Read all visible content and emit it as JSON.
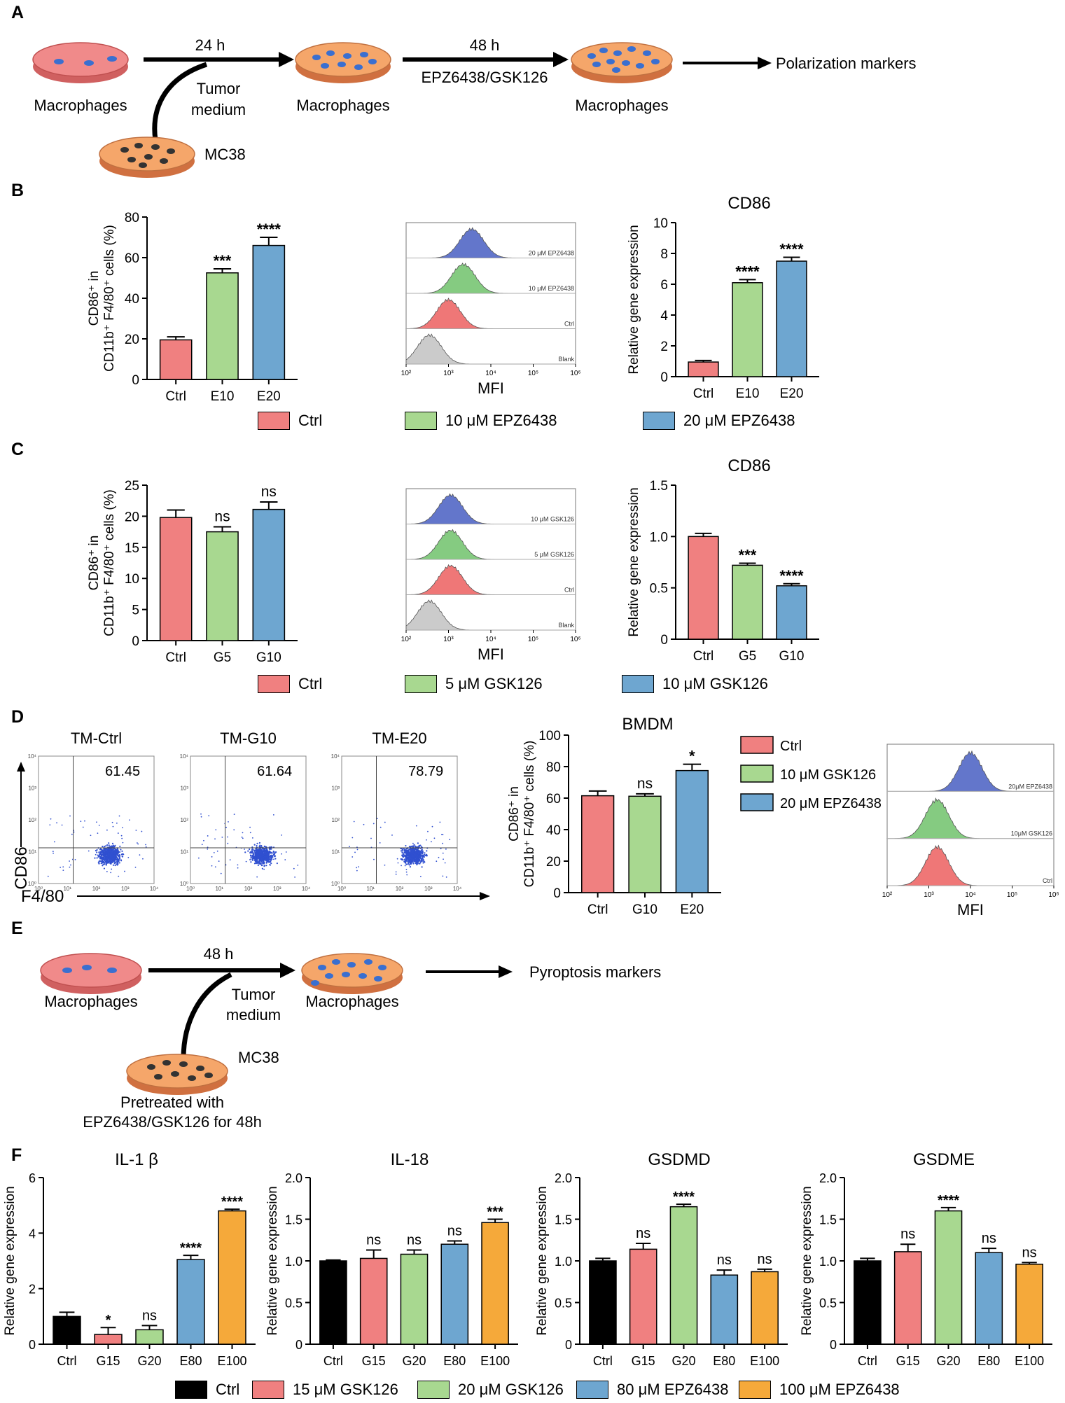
{
  "panels": [
    "A",
    "B",
    "C",
    "D",
    "E",
    "F"
  ],
  "colors": {
    "ctrl": "#f08080",
    "green": "#a8d890",
    "blue": "#6ea6d0",
    "orange": "#f5a93a",
    "black": "#000000",
    "dish_pink": "#f08a8a",
    "dish_orange": "#f5a66a",
    "cell_blue": "#3a6fd0",
    "cell_dark": "#333333",
    "hist_blue": "#5b6fc8",
    "hist_green": "#7ec87a",
    "hist_red": "#ee7070",
    "hist_gray": "#c8c8c8",
    "scatter": "#3050d0"
  },
  "schemeA": {
    "dish1": "Macrophages",
    "time1": "24 h",
    "tumor_medium": "Tumor\nmedium",
    "mc38": "MC38",
    "dish2": "Macrophages",
    "time2": "48 h",
    "treatment": "EPZ6438/GSK126",
    "dish3": "Macrophages",
    "outcome": "Polarization markers"
  },
  "schemeE": {
    "dish1": "Macrophages",
    "time1": "48 h",
    "tumor_medium": "Tumor\nmedium",
    "dish2": "Macrophages",
    "outcome": "Pyroptosis markers",
    "mc38": "MC38",
    "pretreat1": "Pretreated with",
    "pretreat2": "EPZ6438/GSK126 for 48h"
  },
  "chart_data": [
    {
      "id": "B_bar",
      "type": "bar",
      "panel": "B",
      "ylabel_line1": "CD86⁺ in",
      "ylabel_line2": "CD11b⁺ F4/80⁺ cells (%)",
      "categories": [
        "Ctrl",
        "E10",
        "E20"
      ],
      "values": [
        19.5,
        52.5,
        66
      ],
      "errors": [
        1.5,
        2,
        4
      ],
      "sig": [
        "",
        "***",
        "****"
      ],
      "colors": [
        "ctrl",
        "green",
        "blue"
      ],
      "ylim": [
        0,
        80
      ],
      "yticks": [
        "0",
        "20",
        "40",
        "60",
        "80"
      ]
    },
    {
      "id": "B_hist",
      "type": "histogram",
      "panel": "B",
      "xlabel": "MFI",
      "tracks": [
        {
          "label": "20 μM EPZ6438",
          "peak": 3.55,
          "color": "hist_blue"
        },
        {
          "label": "10 μM EPZ6438",
          "peak": 3.35,
          "color": "hist_green"
        },
        {
          "label": "Ctrl",
          "peak": 3.0,
          "color": "hist_red"
        },
        {
          "label": "Blank",
          "peak": 2.55,
          "color": "hist_gray"
        }
      ],
      "xticks": [
        "10²",
        "10³",
        "10⁴",
        "10⁵",
        "10⁶"
      ]
    },
    {
      "id": "B_gene",
      "type": "bar",
      "panel": "B",
      "title": "CD86",
      "ylabel": "Relative gene expression",
      "categories": [
        "Ctrl",
        "E10",
        "E20"
      ],
      "values": [
        0.95,
        6.1,
        7.5
      ],
      "errors": [
        0.1,
        0.2,
        0.25
      ],
      "sig": [
        "",
        "****",
        "****"
      ],
      "colors": [
        "ctrl",
        "green",
        "blue"
      ],
      "ylim": [
        0,
        10
      ],
      "yticks": [
        "0",
        "2",
        "4",
        "6",
        "8",
        "10"
      ]
    },
    {
      "id": "B_legend",
      "type": "legend",
      "panel": "B",
      "entries": [
        {
          "label": "Ctrl",
          "color": "ctrl"
        },
        {
          "label": "10 μM EPZ6438",
          "color": "green"
        },
        {
          "label": "20 μM EPZ6438",
          "color": "blue"
        }
      ]
    },
    {
      "id": "C_bar",
      "type": "bar",
      "panel": "C",
      "ylabel_line1": "CD86⁺ in",
      "ylabel_line2": "CD11b⁺ F4/80⁺ cells (%)",
      "categories": [
        "Ctrl",
        "G5",
        "G10"
      ],
      "values": [
        19.8,
        17.5,
        21.1
      ],
      "errors": [
        1.2,
        0.8,
        1.2
      ],
      "sig": [
        "",
        "ns",
        "ns"
      ],
      "colors": [
        "ctrl",
        "green",
        "blue"
      ],
      "ylim": [
        0,
        25
      ],
      "yticks": [
        "0",
        "5",
        "10",
        "15",
        "20",
        "25"
      ]
    },
    {
      "id": "C_hist",
      "type": "histogram",
      "panel": "C",
      "xlabel": "MFI",
      "tracks": [
        {
          "label": "10 μM GSK126",
          "peak": 3.05,
          "color": "hist_blue"
        },
        {
          "label": "5 μM GSK126",
          "peak": 3.05,
          "color": "hist_green"
        },
        {
          "label": "Ctrl",
          "peak": 3.05,
          "color": "hist_red"
        },
        {
          "label": "Blank",
          "peak": 2.55,
          "color": "hist_gray"
        }
      ],
      "xticks": [
        "10²",
        "10³",
        "10⁴",
        "10⁵",
        "10⁶"
      ]
    },
    {
      "id": "C_gene",
      "type": "bar",
      "panel": "C",
      "title": "CD86",
      "ylabel": "Relative gene expression",
      "categories": [
        "Ctrl",
        "G5",
        "G10"
      ],
      "values": [
        1.0,
        0.72,
        0.52
      ],
      "errors": [
        0.03,
        0.02,
        0.02
      ],
      "sig": [
        "",
        "***",
        "****"
      ],
      "colors": [
        "ctrl",
        "green",
        "blue"
      ],
      "ylim": [
        0,
        1.5
      ],
      "yticks": [
        "0",
        "0.5",
        "1.0",
        "1.5"
      ]
    },
    {
      "id": "C_legend",
      "type": "legend",
      "panel": "C",
      "entries": [
        {
          "label": "Ctrl",
          "color": "ctrl"
        },
        {
          "label": "5 μM GSK126",
          "color": "green"
        },
        {
          "label": "10 μM GSK126",
          "color": "blue"
        }
      ]
    },
    {
      "id": "D_scatter",
      "type": "scatter",
      "panel": "D",
      "ylabel": "CD86",
      "xlabel": "F4/80",
      "plots": [
        {
          "title": "TM-Ctrl",
          "value": "61.45"
        },
        {
          "title": "TM-G10",
          "value": "61.64"
        },
        {
          "title": "TM-E20",
          "value": "78.79"
        }
      ],
      "ticks": [
        "10⁰",
        "10¹",
        "10²",
        "10³",
        "10⁴"
      ]
    },
    {
      "id": "D_bar",
      "type": "bar",
      "panel": "D",
      "title": "BMDM",
      "ylabel_line1": "CD86⁺ in",
      "ylabel_line2": "CD11b⁺ F4/80⁺ cells (%)",
      "categories": [
        "Ctrl",
        "G10",
        "E20"
      ],
      "values": [
        61.5,
        61.2,
        77.5
      ],
      "errors": [
        3,
        1.5,
        4
      ],
      "sig": [
        "",
        "ns",
        "*"
      ],
      "colors": [
        "ctrl",
        "green",
        "blue"
      ],
      "ylim": [
        0,
        100
      ],
      "yticks": [
        "0",
        "20",
        "40",
        "60",
        "80",
        "100"
      ],
      "legend": [
        {
          "label": "Ctrl",
          "color": "ctrl"
        },
        {
          "label": "10 μM GSK126",
          "color": "green"
        },
        {
          "label": "20 μM EPZ6438",
          "color": "blue"
        }
      ]
    },
    {
      "id": "D_hist",
      "type": "histogram",
      "panel": "D",
      "xlabel": "MFI",
      "tracks": [
        {
          "label": "20μM EPZ6438",
          "peak": 4.0,
          "color": "hist_blue"
        },
        {
          "label": "10μM GSK126",
          "peak": 3.2,
          "color": "hist_green"
        },
        {
          "label": "Ctrl",
          "peak": 3.2,
          "color": "hist_red"
        }
      ],
      "xticks": [
        "10²",
        "10³",
        "10⁴",
        "10⁵",
        "10⁶"
      ]
    },
    {
      "id": "F_il1b",
      "type": "bar",
      "panel": "F",
      "title": "IL-1 β",
      "ylabel": "Relative gene expression",
      "categories": [
        "Ctrl",
        "G15",
        "G20",
        "E80",
        "E100"
      ],
      "values": [
        1.0,
        0.35,
        0.52,
        3.05,
        4.8
      ],
      "errors": [
        0.15,
        0.25,
        0.15,
        0.15,
        0.06
      ],
      "sig": [
        "",
        "*",
        "ns",
        "****",
        "****"
      ],
      "colors": [
        "black",
        "ctrl",
        "green",
        "blue",
        "orange"
      ],
      "ylim": [
        0,
        6
      ],
      "yticks": [
        "0",
        "2",
        "4",
        "6"
      ]
    },
    {
      "id": "F_il18",
      "type": "bar",
      "panel": "F",
      "title": "IL-18",
      "ylabel": "Relative gene expression",
      "categories": [
        "Ctrl",
        "G15",
        "G20",
        "E80",
        "E100"
      ],
      "values": [
        1.0,
        1.03,
        1.08,
        1.2,
        1.46
      ],
      "errors": [
        0.01,
        0.1,
        0.05,
        0.04,
        0.04
      ],
      "sig": [
        "",
        "ns",
        "ns",
        "ns",
        "***"
      ],
      "colors": [
        "black",
        "ctrl",
        "green",
        "blue",
        "orange"
      ],
      "ylim": [
        0,
        2.0
      ],
      "yticks": [
        "0",
        "0.5",
        "1.0",
        "1.5",
        "2.0"
      ]
    },
    {
      "id": "F_gsdmd",
      "type": "bar",
      "panel": "F",
      "title": "GSDMD",
      "ylabel": "Relative gene expression",
      "categories": [
        "Ctrl",
        "G15",
        "G20",
        "E80",
        "E100"
      ],
      "values": [
        1.0,
        1.14,
        1.65,
        0.83,
        0.87
      ],
      "errors": [
        0.03,
        0.07,
        0.03,
        0.06,
        0.03
      ],
      "sig": [
        "",
        "ns",
        "****",
        "ns",
        "ns"
      ],
      "colors": [
        "black",
        "ctrl",
        "green",
        "blue",
        "orange"
      ],
      "ylim": [
        0,
        2.0
      ],
      "yticks": [
        "0",
        "0.5",
        "1.0",
        "1.5",
        "2.0"
      ]
    },
    {
      "id": "F_gsdme",
      "type": "bar",
      "panel": "F",
      "title": "GSDME",
      "ylabel": "Relative gene expression",
      "categories": [
        "Ctrl",
        "G15",
        "G20",
        "E80",
        "E100"
      ],
      "values": [
        1.0,
        1.11,
        1.6,
        1.1,
        0.96
      ],
      "errors": [
        0.03,
        0.09,
        0.04,
        0.05,
        0.02
      ],
      "sig": [
        "",
        "ns",
        "****",
        "ns",
        "ns"
      ],
      "colors": [
        "black",
        "ctrl",
        "green",
        "blue",
        "orange"
      ],
      "ylim": [
        0,
        2.0
      ],
      "yticks": [
        "0",
        "0.5",
        "1.0",
        "1.5",
        "2.0"
      ]
    },
    {
      "id": "F_legend",
      "type": "legend",
      "panel": "F",
      "entries": [
        {
          "label": "Ctrl",
          "color": "black"
        },
        {
          "label": "15 μM GSK126",
          "color": "ctrl"
        },
        {
          "label": "20 μM GSK126",
          "color": "green"
        },
        {
          "label": "80 μM EPZ6438",
          "color": "blue"
        },
        {
          "label": "100 μM EPZ6438",
          "color": "orange"
        }
      ]
    }
  ]
}
